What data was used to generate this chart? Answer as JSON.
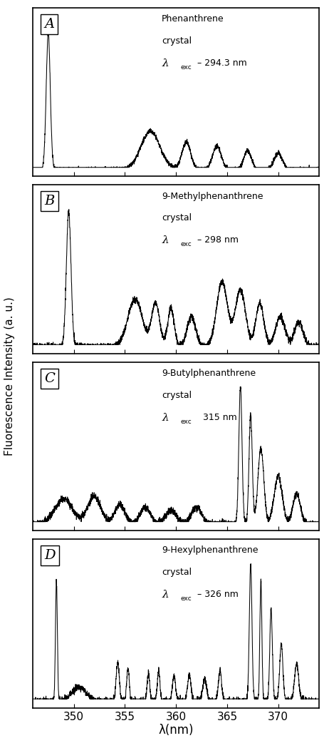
{
  "panels": [
    {
      "label": "A",
      "title_line1": "Phenanthrene",
      "title_line2": "crystal",
      "lambda_text": "λ",
      "lambda_sub": "exc",
      "lambda_val": " – 294.3 nm",
      "spectrum_type": "A"
    },
    {
      "label": "B",
      "title_line1": "9-Methylphenanthrene",
      "title_line2": "crystal",
      "lambda_text": "λ",
      "lambda_sub": "exc",
      "lambda_val": " – 298 nm",
      "spectrum_type": "B"
    },
    {
      "label": "C",
      "title_line1": "9-Butylphenanthrene",
      "title_line2": "crystal",
      "lambda_text": "λ",
      "lambda_sub": "exc",
      "lambda_val": "   315 nm",
      "spectrum_type": "C"
    },
    {
      "label": "D",
      "title_line1": "9-Hexylphenanthrene",
      "title_line2": "crystal",
      "lambda_text": "λ",
      "lambda_sub": "exc",
      "lambda_val": " – 326 nm",
      "spectrum_type": "D"
    }
  ],
  "xlim": [
    346,
    374
  ],
  "xticks": [
    350,
    355,
    360,
    365,
    370
  ],
  "xlabel": "λ(nm)",
  "ylabel": "Fluorescence Intensity (a. u.)",
  "bg_color": "#ffffff",
  "line_color": "#000000"
}
